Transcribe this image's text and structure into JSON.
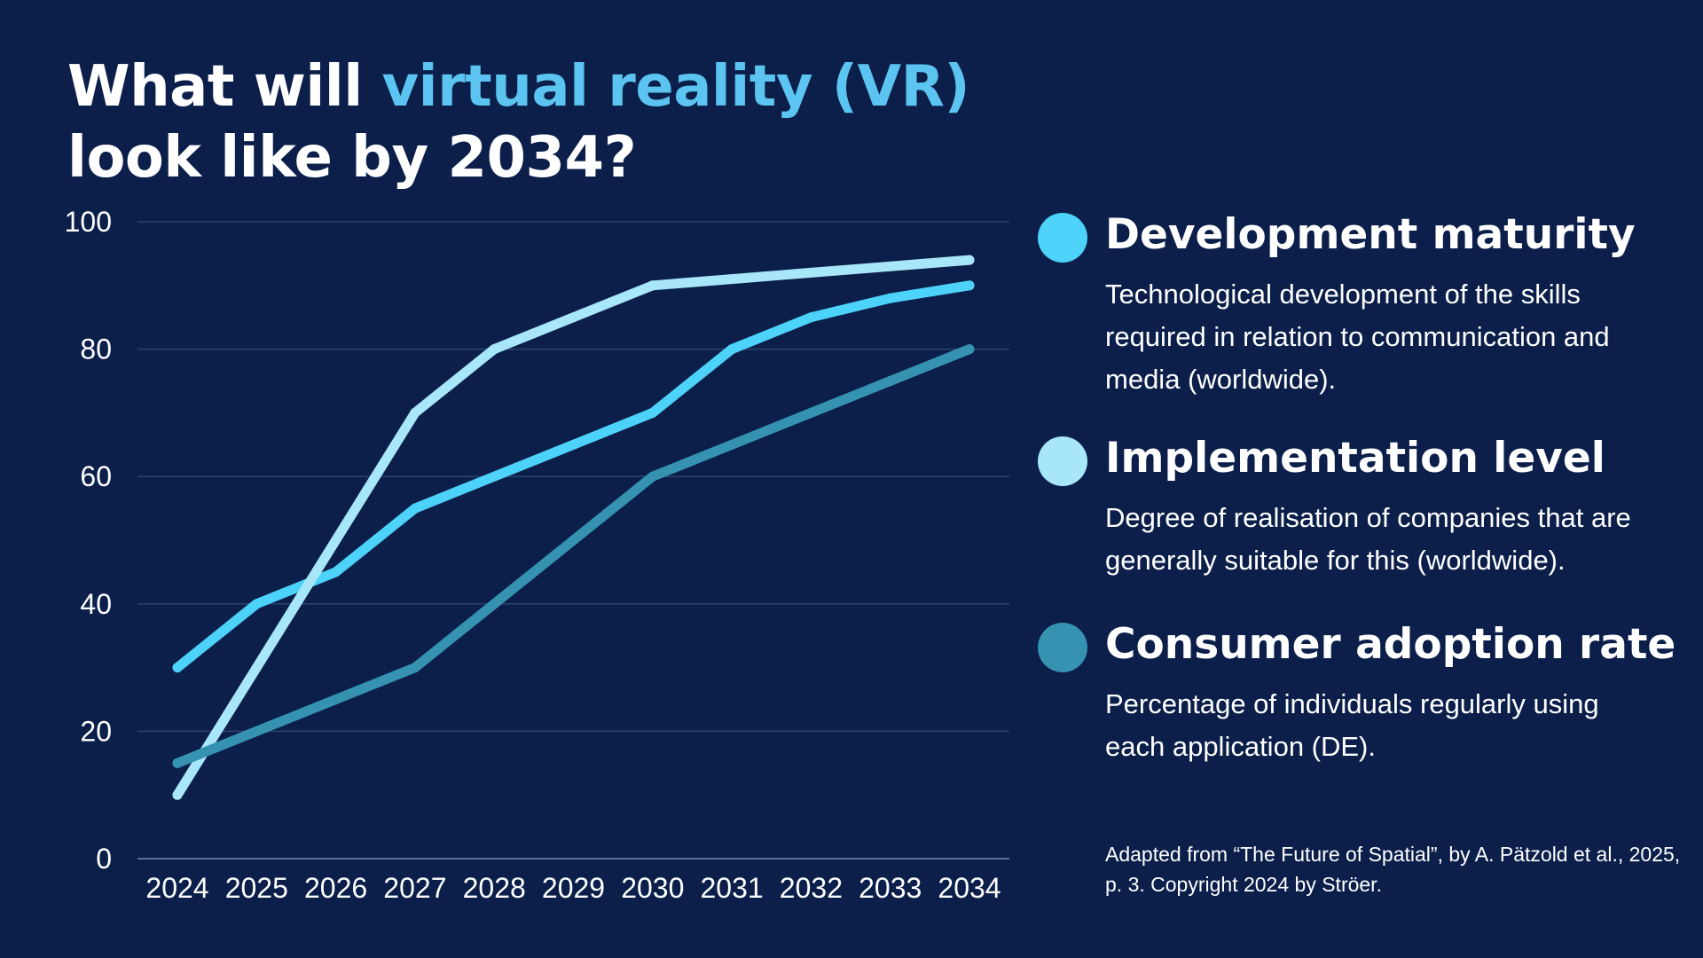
{
  "title": {
    "prefix": "What will ",
    "highlight": "virtual reality (VR)",
    "line2": "look like by 2034?"
  },
  "colors": {
    "background": "#0b1f4a",
    "accent_title": "#5cc4f0",
    "gridline": "#2c4270",
    "axis": "#5a6d93"
  },
  "chart_data": {
    "type": "line",
    "title": "What will virtual reality (VR) look like by 2034?",
    "xlabel": "",
    "ylabel": "",
    "x": [
      "2024",
      "2025",
      "2026",
      "2027",
      "2028",
      "2029",
      "2030",
      "2031",
      "2032",
      "2033",
      "2034"
    ],
    "ylim": [
      0,
      100
    ],
    "yticks": [
      "0",
      "20",
      "40",
      "60",
      "80",
      "100"
    ],
    "grid": true,
    "series": [
      {
        "name": "Development maturity",
        "color": "#4dd2fa",
        "values": [
          30,
          40,
          45,
          55,
          60,
          65,
          70,
          80,
          85,
          88,
          90
        ]
      },
      {
        "name": "Implementation level",
        "color": "#a8e6fa",
        "values": [
          10,
          30,
          50,
          70,
          80,
          85,
          90,
          91,
          92,
          93,
          94
        ]
      },
      {
        "name": "Consumer adoption rate",
        "color": "#3592b0",
        "values": [
          15,
          20,
          25,
          30,
          40,
          50,
          60,
          65,
          70,
          75,
          80
        ]
      }
    ]
  },
  "legend": {
    "items": [
      {
        "title": "Development maturity",
        "description": "Technological development of the skills required in relation to communication and media (worldwide).",
        "color": "#4dd2fa"
      },
      {
        "title": "Implementation level",
        "description": "Degree of realisation of companies that are generally suitable for this (worldwide).",
        "color": "#a8e6fa"
      },
      {
        "title": "Consumer adoption rate",
        "description": "Percentage of individuals regularly using each application (DE).",
        "color": "#3592b0"
      }
    ]
  },
  "source": {
    "text": "Adapted from “The Future of Spatial”, by A. Pätzold et al., 2025, p. 3. Copyright 2024 by Ströer."
  }
}
